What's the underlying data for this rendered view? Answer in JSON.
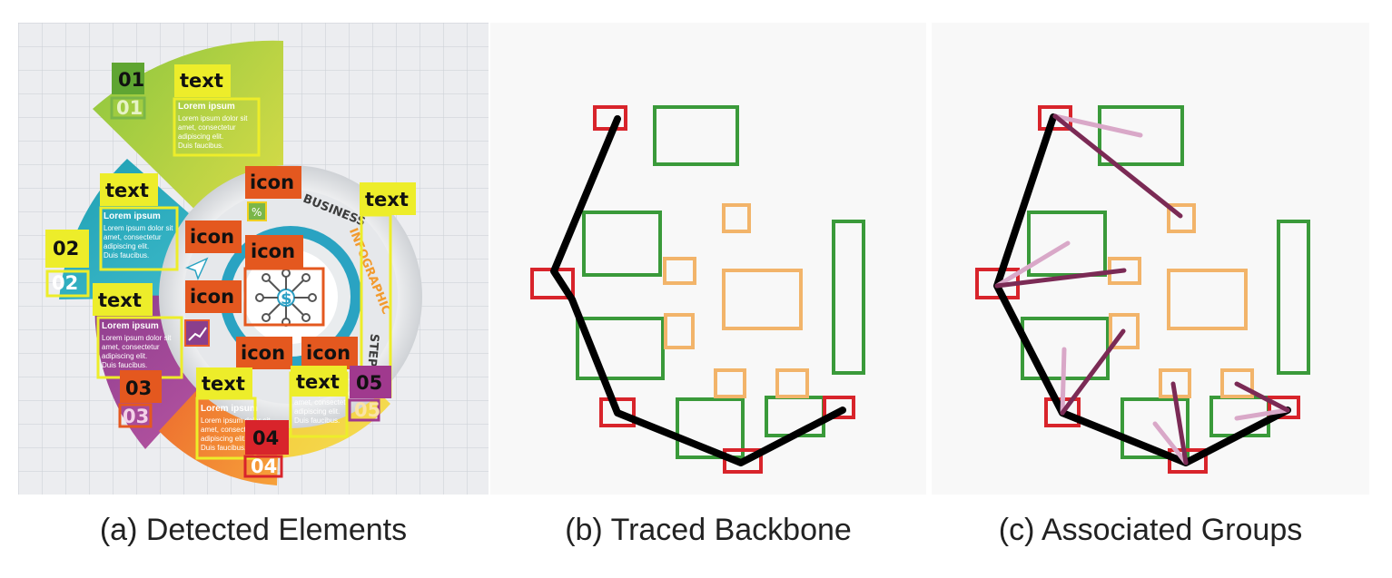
{
  "captions": {
    "a": "(a) Detected Elements",
    "b": "(b) Traced Backbone",
    "c": "(c) Associated Groups"
  },
  "labels": {
    "text": "text",
    "icon": "icon",
    "n01": "01",
    "n02": "02",
    "n03": "03",
    "n04": "04",
    "n05": "05"
  },
  "infographic": {
    "lorem_title": "Lorem ipsum",
    "lorem_line1": "Lorem ipsum dolor sit",
    "lorem_line2": "amet, consectetur",
    "lorem_line3": "adipiscing elit.",
    "lorem_line4": "Duis faucibus.",
    "arc_business": "BUSINESS",
    "arc_infographic": "INFOGRAPHIC",
    "arc_steps": "STEPS"
  },
  "colors": {
    "index_box": "#d8242b",
    "text_box": "#3a9a3a",
    "icon_box": "#f2b46a",
    "backbone": "#000000",
    "assoc_light": "#d9a8c8",
    "assoc_dark": "#7b2a55"
  }
}
